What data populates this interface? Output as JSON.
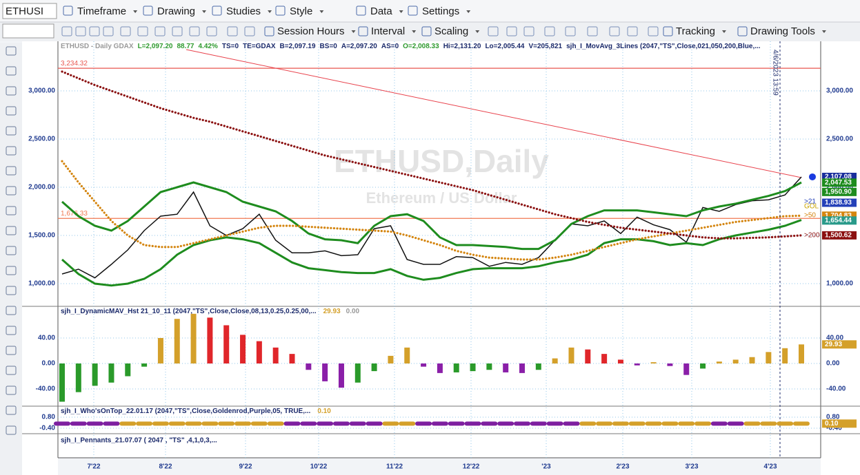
{
  "toolbar": {
    "symbol": "ETHUSI",
    "items": [
      "Timeframe",
      "Drawing",
      "Studies",
      "Style",
      "Data",
      "Settings"
    ]
  },
  "toolbar2": {
    "items": [
      "Session Hours",
      "Interval",
      "Scaling",
      "Tracking",
      "Drawing Tools"
    ]
  },
  "status_line": [
    {
      "text": "ETHUSD - Daily  GDAX",
      "color": "#9a9a9a"
    },
    {
      "text": "L=2,097.20",
      "color": "#2e9a2e"
    },
    {
      "text": "88.77",
      "color": "#2e9a2e"
    },
    {
      "text": "4.42%",
      "color": "#2e9a2e"
    },
    {
      "text": "TS=0",
      "color": "#1b2a6b"
    },
    {
      "text": "TE=GDAX",
      "color": "#1b2a6b"
    },
    {
      "text": "B=2,097.19",
      "color": "#1b2a6b"
    },
    {
      "text": "BS=0",
      "color": "#1b2a6b"
    },
    {
      "text": "A=2,097.20",
      "color": "#1b2a6b"
    },
    {
      "text": "AS=0",
      "color": "#1b2a6b"
    },
    {
      "text": "O=2,008.33",
      "color": "#2e9a2e"
    },
    {
      "text": "Hi=2,131.20",
      "color": "#1b2a6b"
    },
    {
      "text": "Lo=2,005.44",
      "color": "#1b2a6b"
    },
    {
      "text": "V=205,821",
      "color": "#1b2a6b"
    },
    {
      "text": "sjh_I_MovAvg_3Lines (2047,\"TS\",Close,021,050,200,Blue,...",
      "color": "#1b2a6b"
    }
  ],
  "watermark": {
    "title": "ETHUSD,Daily",
    "subtitle": "Ethereum / US Dollar"
  },
  "price_pane": {
    "ylim": [
      764,
      3514
    ],
    "yticks": [
      {
        "value": 1000,
        "label": "1,000.00"
      },
      {
        "value": 1500,
        "label": "1,500.00"
      },
      {
        "value": 2000,
        "label": "2,000.00"
      },
      {
        "value": 2500,
        "label": "2,500.00"
      },
      {
        "value": 3000,
        "label": "3,000.00"
      }
    ],
    "series": [
      {
        "name": "Close",
        "color": "#111111",
        "values": [
          1100,
          1150,
          1060,
          1200,
          1350,
          1550,
          1700,
          1720,
          1950,
          1600,
          1500,
          1570,
          1720,
          1450,
          1320,
          1320,
          1340,
          1290,
          1300,
          1570,
          1600,
          1250,
          1200,
          1200,
          1280,
          1270,
          1180,
          1220,
          1200,
          1270,
          1450,
          1620,
          1600,
          1650,
          1520,
          1690,
          1610,
          1560,
          1430,
          1790,
          1750,
          1820,
          1860,
          1870,
          1920,
          2107.08
        ]
      },
      {
        "name": "Upper",
        "color": "#1e8c1e",
        "values": [
          1850,
          1700,
          1600,
          1550,
          1650,
          1800,
          1950,
          2000,
          2050,
          2000,
          1950,
          1850,
          1800,
          1750,
          1650,
          1520,
          1460,
          1450,
          1420,
          1600,
          1700,
          1720,
          1650,
          1480,
          1400,
          1400,
          1390,
          1380,
          1360,
          1360,
          1450,
          1620,
          1700,
          1760,
          1760,
          1760,
          1740,
          1720,
          1700,
          1760,
          1800,
          1830,
          1870,
          1910,
          1960,
          2050
        ]
      },
      {
        "name": "Lower",
        "color": "#1e8c1e",
        "values": [
          1250,
          1100,
          1000,
          980,
          1000,
          1050,
          1150,
          1300,
          1400,
          1450,
          1480,
          1460,
          1420,
          1320,
          1220,
          1160,
          1140,
          1120,
          1110,
          1110,
          1150,
          1080,
          1040,
          1060,
          1110,
          1150,
          1160,
          1160,
          1160,
          1180,
          1220,
          1250,
          1300,
          1420,
          1460,
          1460,
          1440,
          1400,
          1420,
          1400,
          1460,
          1500,
          1530,
          1560,
          1600,
          1660
        ]
      },
      {
        "name": "MA50",
        "color": "#d4850f",
        "dotted": true,
        "values": [
          2270,
          2050,
          1850,
          1650,
          1500,
          1400,
          1380,
          1380,
          1420,
          1460,
          1500,
          1540,
          1580,
          1600,
          1600,
          1590,
          1580,
          1570,
          1560,
          1550,
          1540,
          1500,
          1450,
          1400,
          1340,
          1300,
          1270,
          1260,
          1250,
          1250,
          1270,
          1300,
          1340,
          1380,
          1420,
          1460,
          1490,
          1520,
          1550,
          1580,
          1610,
          1640,
          1660,
          1680,
          1700,
          1704.83
        ]
      },
      {
        "name": "MA200",
        "color": "#8b1010",
        "dotted": true,
        "values": [
          3200,
          3130,
          3060,
          3000,
          2940,
          2880,
          2820,
          2770,
          2720,
          2680,
          2630,
          2580,
          2530,
          2480,
          2430,
          2380,
          2330,
          2290,
          2250,
          2210,
          2170,
          2130,
          2090,
          2050,
          2010,
          1970,
          1920,
          1870,
          1820,
          1770,
          1720,
          1680,
          1640,
          1610,
          1580,
          1560,
          1540,
          1520,
          1500,
          1480,
          1470,
          1470,
          1475,
          1480,
          1490,
          1500.62
        ]
      }
    ],
    "hlines": [
      {
        "value": 3234.32,
        "label": "3,234.32",
        "color": "#e8554e"
      },
      {
        "value": 1676.33,
        "label": "1,676.33",
        "color": "#f07850"
      }
    ],
    "trendline": {
      "values": [
        3428,
        2100
      ],
      "color": "#e8404a"
    },
    "tags": [
      {
        "value": 2107.08,
        "label": "2,107.08",
        "color": "#1a2e9c"
      },
      {
        "value": 2047.53,
        "label": "2,047.53",
        "color": "#1e8c1e"
      },
      {
        "value": 1950.9,
        "label": "1,950.90",
        "color": "#1e8c1e"
      },
      {
        "value": 1838.93,
        "label": "1,838.93",
        "color": "#2440b8"
      },
      {
        "value": 1704.83,
        "label": "1,704.83",
        "color": "#d4850f"
      },
      {
        "value": 1654.44,
        "label": "1,654.44",
        "color": "#2a9a8a"
      },
      {
        "value": 1500.62,
        "label": "1,500.62",
        "color": "#8b1010"
      }
    ],
    "ma_labels": [
      ">21",
      "GOL",
      ">50",
      ">200"
    ]
  },
  "cursor": {
    "label": "4/6/2023 13:59"
  },
  "hist_pane": {
    "title": "sjh_I_DynamicMAV_Hst 21_10_11 (2047,\"TS\",Close,Close,08,13,0.25,0.25,00,...",
    "zero_label": "0.00",
    "ylim": [
      -67,
      89.7
    ],
    "yticks": [
      {
        "value": 40,
        "label": "40.00"
      },
      {
        "value": 0,
        "label": "0.00"
      },
      {
        "value": -40,
        "label": "-40.00"
      }
    ],
    "values": [
      -60,
      -45,
      -35,
      -30,
      -20,
      -5,
      40,
      70,
      78,
      72,
      60,
      45,
      35,
      25,
      15,
      -10,
      -28,
      -38,
      -30,
      -12,
      12,
      25,
      -5,
      -15,
      -14,
      -12,
      -10,
      -14,
      -15,
      -10,
      8,
      25,
      22,
      15,
      6,
      -3,
      2,
      -4,
      -18,
      -8,
      3,
      6,
      10,
      18,
      24,
      29.93
    ]
  },
  "who_pane": {
    "title": "sjh_I_Who'sOnTop_22.01.17 (2047,\"TS\",Close,Goldenrod,Purple,05, TRUE,...",
    "value": 0.1,
    "value_label": "0.10",
    "ylim": [
      -1.0,
      2.0
    ],
    "yticks": [
      {
        "value": 0.8,
        "label": "0.80"
      },
      {
        "value": -0.4,
        "label": "-0.40"
      }
    ],
    "colors": [
      "#7d1fa0",
      "#7d1fa0",
      "#7d1fa0",
      "#7d1fa0",
      "#d4a02a",
      "#d4a02a",
      "#d4a02a",
      "#d4a02a",
      "#d4a02a",
      "#d4a02a",
      "#d4a02a",
      "#d4a02a",
      "#d4a02a",
      "#d4a02a",
      "#7d1fa0",
      "#7d1fa0",
      "#7d1fa0",
      "#7d1fa0",
      "#7d1fa0",
      "#7d1fa0",
      "#d4a02a",
      "#d4a02a",
      "#7d1fa0",
      "#7d1fa0",
      "#7d1fa0",
      "#7d1fa0",
      "#7d1fa0",
      "#7d1fa0",
      "#7d1fa0",
      "#7d1fa0",
      "#7d1fa0",
      "#7d1fa0",
      "#d4a02a",
      "#d4a02a",
      "#d4a02a",
      "#d4a02a",
      "#d4a02a",
      "#d4a02a",
      "#d4a02a",
      "#d4a02a",
      "#7d1fa0",
      "#7d1fa0",
      "#d4a02a",
      "#d4a02a",
      "#d4a02a",
      "#d4a02a"
    ]
  },
  "pennants_pane": {
    "title": "sjh_I_Pennants_21.07.07 ( 2047 , \"TS\" ,4,1,0,3,..."
  },
  "x_labels": [
    "7'22",
    "8'22",
    "9'22",
    "10'22",
    "11'22",
    "12'22",
    "'23",
    "2'23",
    "3'23",
    "4'23"
  ]
}
